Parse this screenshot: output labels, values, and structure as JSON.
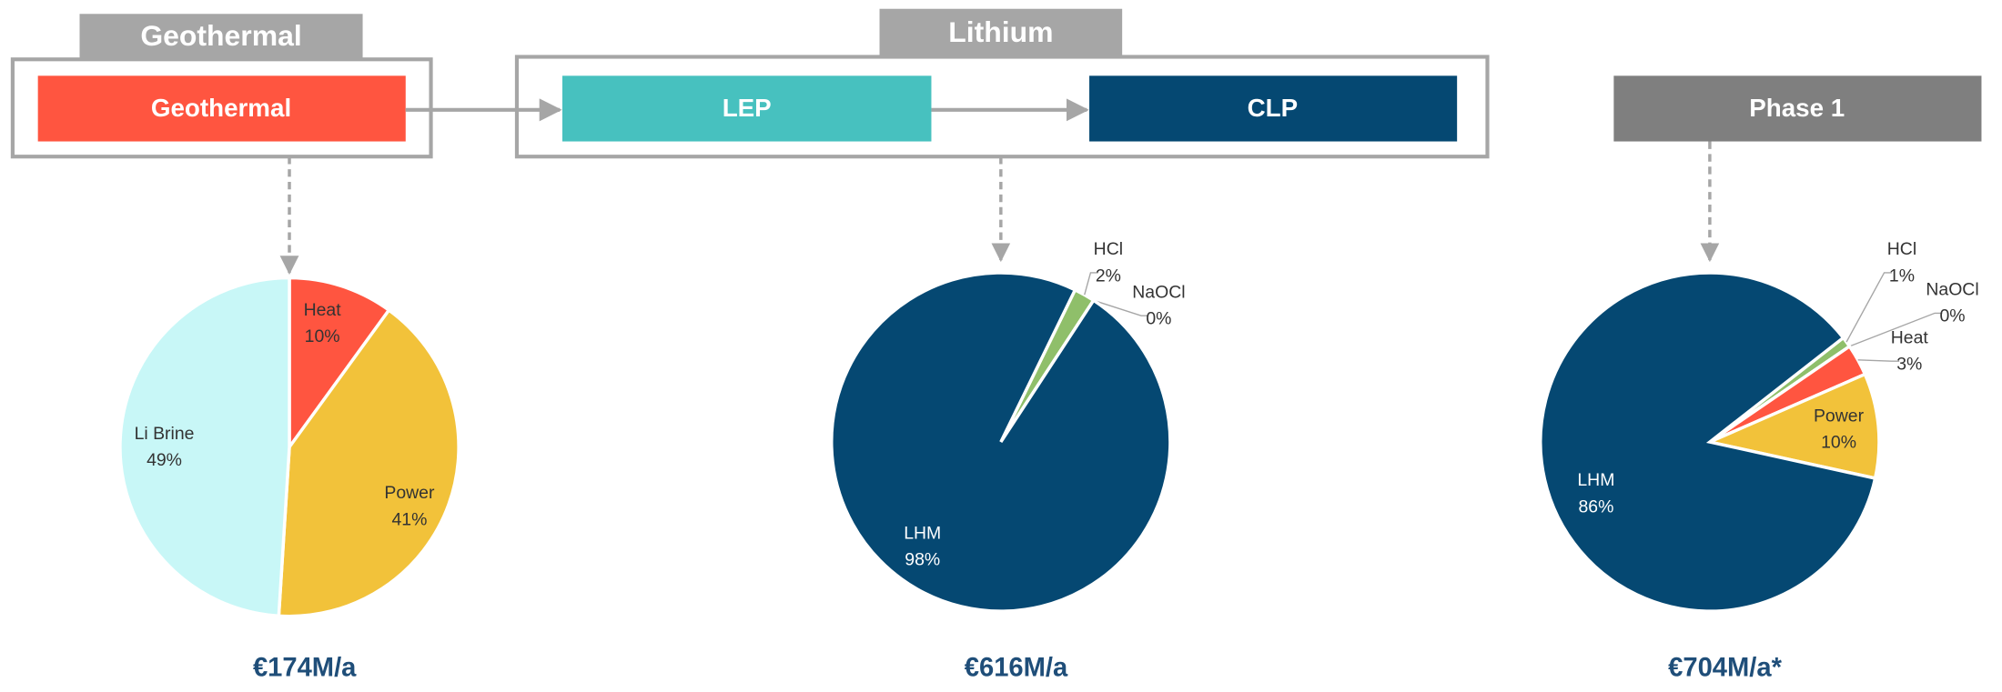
{
  "diagram": {
    "groups": [
      "Geothermal",
      "Lithium"
    ],
    "boxes": [
      "Geothermal",
      "LEP",
      "CLP",
      "Phase 1"
    ]
  },
  "chart_data": [
    {
      "type": "pie",
      "categories": [
        "Heat",
        "Power",
        "Li Brine"
      ],
      "values": [
        10,
        41,
        49
      ],
      "value_labels": [
        "10%",
        "41%",
        "49%"
      ],
      "colors": [
        "#ff5540",
        "#f2c23a",
        "#c8f7f7"
      ],
      "caption": "€174M/a"
    },
    {
      "type": "pie",
      "categories": [
        "HCl",
        "NaOCl",
        "LHM"
      ],
      "values": [
        2,
        0,
        98
      ],
      "value_labels": [
        "2%",
        "0%",
        "98%"
      ],
      "colors": [
        "#8fbf6a",
        "#a9d18e",
        "#054872"
      ],
      "caption": "€616M/a"
    },
    {
      "type": "pie",
      "categories": [
        "HCl",
        "NaOCl",
        "Heat",
        "Power",
        "LHM"
      ],
      "values": [
        1,
        0,
        3,
        10,
        86
      ],
      "value_labels": [
        "1%",
        "0%",
        "3%",
        "10%",
        "86%"
      ],
      "colors": [
        "#8fbf6a",
        "#a9d18e",
        "#ff5540",
        "#f2c23a",
        "#054872"
      ],
      "caption": "€704M/a*"
    }
  ]
}
